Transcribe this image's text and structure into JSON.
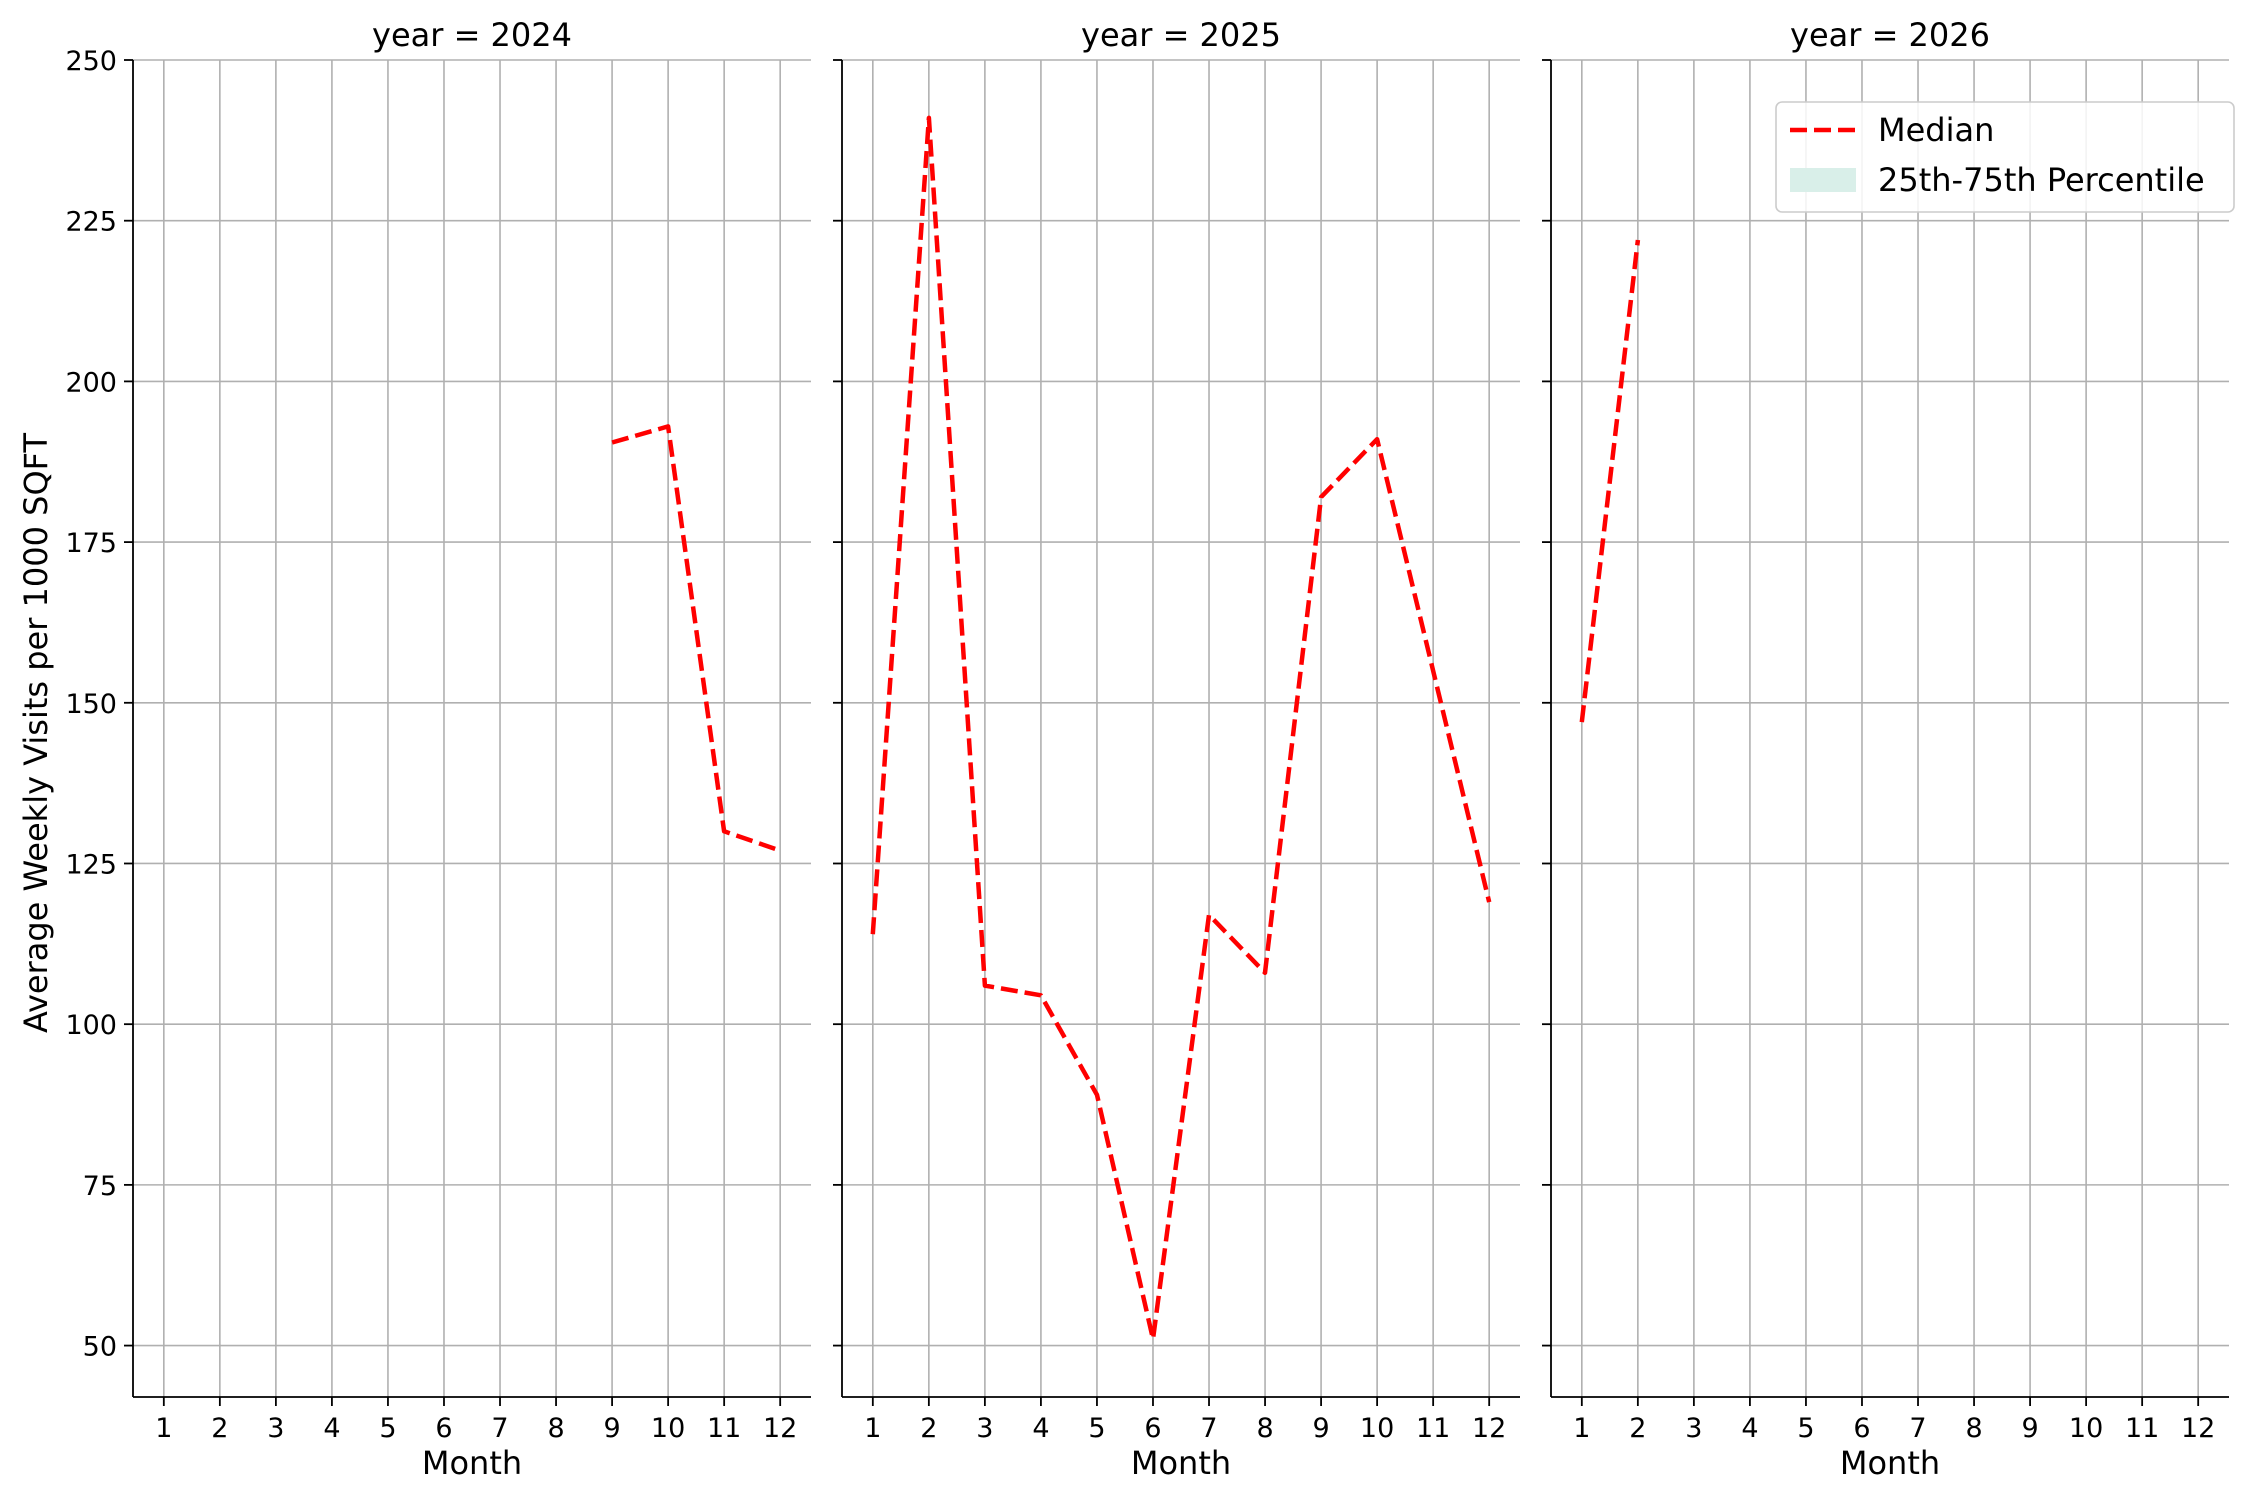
{
  "chart_data": {
    "type": "line",
    "ylabel": "Average Weekly Visits per 1000 SQFT",
    "ylim": [
      42,
      250
    ],
    "y_ticks": [
      50,
      75,
      100,
      125,
      150,
      175,
      200,
      225,
      250
    ],
    "y_tick_labels": [
      "50",
      "75",
      "100",
      "125",
      "150",
      "175",
      "200",
      "225",
      "250"
    ],
    "xlim": [
      0.45,
      12.55
    ],
    "x_ticks": [
      1,
      2,
      3,
      4,
      5,
      6,
      7,
      8,
      9,
      10,
      11,
      12
    ],
    "x_tick_labels": [
      "1",
      "2",
      "3",
      "4",
      "5",
      "6",
      "7",
      "8",
      "9",
      "10",
      "11",
      "12"
    ],
    "grid": true,
    "colors": {
      "median": "#ff0000",
      "percentile_band": "#d9efe9",
      "grid": "#b0b0b0"
    },
    "legend": {
      "placement": "top-right",
      "entries": [
        {
          "label": "Median",
          "style": "dashed-line",
          "color": "#ff0000"
        },
        {
          "label": "25th-75th Percentile",
          "style": "patch",
          "color": "#d9efe9"
        }
      ]
    },
    "panels": [
      {
        "title": "year = 2024",
        "xlabel": "Month",
        "series": [
          {
            "x": [
              9,
              10,
              11,
              12
            ],
            "y": [
              190.5,
              193,
              130,
              127
            ]
          }
        ]
      },
      {
        "title": "year = 2025",
        "xlabel": "Month",
        "series": [
          {
            "x": [
              1,
              2,
              3,
              4,
              5,
              6,
              7,
              8,
              9,
              10,
              11,
              12
            ],
            "y": [
              114,
              241,
              106,
              104.5,
              89,
              51,
              117,
              108,
              182,
              191,
              155,
              119
            ]
          }
        ]
      },
      {
        "title": "year = 2026",
        "xlabel": "Month",
        "series": [
          {
            "x": [
              1,
              2
            ],
            "y": [
              147,
              222
            ]
          }
        ]
      }
    ]
  }
}
